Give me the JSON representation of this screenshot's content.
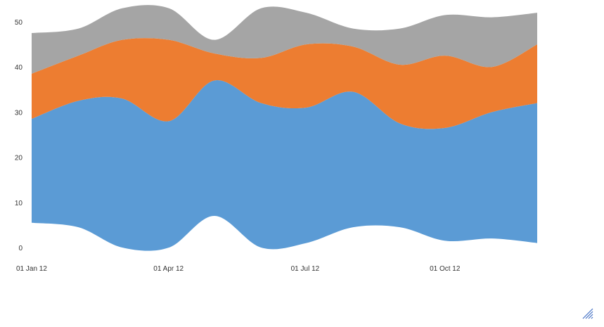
{
  "chart_data": {
    "type": "area",
    "stacked": true,
    "curve": "smooth",
    "baseline": "streamgraph",
    "grid": false,
    "legend": "none",
    "x": [
      "2012-01-01",
      "2012-02-01",
      "2012-03-01",
      "2012-04-01",
      "2012-05-01",
      "2012-06-01",
      "2012-07-01",
      "2012-08-01",
      "2012-09-01",
      "2012-10-01",
      "2012-11-01",
      "2012-12-01"
    ],
    "baseline_offset": [
      5.5,
      4.5,
      0,
      0,
      7,
      0,
      1,
      4.5,
      4.5,
      1.5,
      2,
      1
    ],
    "series": [
      {
        "values": [
          23,
          28,
          33,
          28,
          30,
          32,
          30,
          30,
          23,
          25,
          28,
          31
        ],
        "color": "#5b9bd5"
      },
      {
        "values": [
          10,
          10,
          13,
          18,
          6,
          10,
          14,
          10,
          13,
          16,
          10,
          13
        ],
        "color": "#ed7d31"
      },
      {
        "values": [
          9,
          6,
          7,
          7,
          3,
          11,
          7,
          4,
          8,
          9,
          11,
          7
        ],
        "color": "#a5a5a5"
      }
    ],
    "ylim": [
      0,
      50
    ],
    "xlim": [
      "2012-01-01",
      "2012-12-01"
    ],
    "y_ticks": [
      "0",
      "10",
      "20",
      "30",
      "40",
      "50"
    ],
    "x_ticks": [
      {
        "date": "2012-01-01",
        "label": "01 Jan 12"
      },
      {
        "date": "2012-04-01",
        "label": "01 Apr 12"
      },
      {
        "date": "2012-07-01",
        "label": "01 Jul 12"
      },
      {
        "date": "2012-10-01",
        "label": "01 Oct 12"
      }
    ],
    "title": "",
    "xlabel": "",
    "ylabel": ""
  },
  "ui": {
    "resize_handle_icon": "resize-grip-icon",
    "resize_handle_color": "#4472c4"
  }
}
